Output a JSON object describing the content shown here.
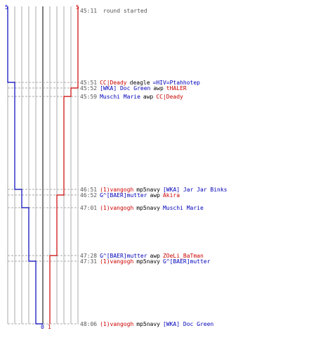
{
  "chart_data": {
    "type": "line",
    "title": "",
    "xlabel": "",
    "ylabel": "",
    "x_axis": "players alive",
    "teams": [
      {
        "name": "blue",
        "color": "#0000bb",
        "start": 5,
        "end": 0
      },
      {
        "name": "red",
        "color": "#cc0000",
        "start": 5,
        "end": 1
      }
    ],
    "start_event": {
      "time": "45:11",
      "text": "round started"
    },
    "events": [
      {
        "time": "45:51",
        "killer": "CC|Deady",
        "killer_team": "red",
        "weapon": "deagle",
        "victim": "=HIV=Ptahhotep",
        "victim_team": "blue",
        "blue_after": 4,
        "red_after": 5
      },
      {
        "time": "45:52",
        "killer": "[WKA] Doc Green",
        "killer_team": "blue",
        "weapon": "awp",
        "victim": "tHALER",
        "victim_team": "red",
        "blue_after": 4,
        "red_after": 4
      },
      {
        "time": "45:59",
        "killer": "Muschi Marie",
        "killer_team": "blue",
        "weapon": "awp",
        "victim": "CC|Deady",
        "victim_team": "red",
        "blue_after": 4,
        "red_after": 3
      },
      {
        "time": "46:51",
        "killer": "(1)vangogh",
        "killer_team": "red",
        "weapon": "mp5navy",
        "victim": "[WKA] Jar Jar Binks",
        "victim_team": "blue",
        "blue_after": 3,
        "red_after": 3
      },
      {
        "time": "46:52",
        "killer": "G^[BAER]mutter",
        "killer_team": "blue",
        "weapon": "awp",
        "victim": "Akira",
        "victim_team": "red",
        "blue_after": 3,
        "red_after": 2
      },
      {
        "time": "47:01",
        "killer": "(1)vangogh",
        "killer_team": "red",
        "weapon": "mp5navy",
        "victim": "Muschi Marie",
        "victim_team": "blue",
        "blue_after": 2,
        "red_after": 2
      },
      {
        "time": "47:28",
        "killer": "G^[BAER]mutter",
        "killer_team": "blue",
        "weapon": "awp",
        "victim": "ZOeLi_BaTman",
        "victim_team": "red",
        "blue_after": 2,
        "red_after": 1
      },
      {
        "time": "47:31",
        "killer": "(1)vangogh",
        "killer_team": "red",
        "weapon": "mp5navy",
        "victim": "G^[BAER]mutter",
        "victim_team": "blue",
        "blue_after": 1,
        "red_after": 1
      },
      {
        "time": "48:06",
        "killer": "(1)vangogh",
        "killer_team": "red",
        "weapon": "mp5navy",
        "victim": "[WKA] Doc Green",
        "victim_team": "blue",
        "blue_after": 0,
        "red_after": 1
      }
    ],
    "x_ticks": {
      "blue_top": "5",
      "red_top": "5",
      "blue_bottom": "0",
      "red_bottom": "1"
    },
    "grid": true,
    "colors": {
      "blue": "#0000bb",
      "red": "#cc0000",
      "text": "#000000",
      "time": "#555555",
      "grid": "#aaaaaa",
      "center": "#555555"
    }
  }
}
